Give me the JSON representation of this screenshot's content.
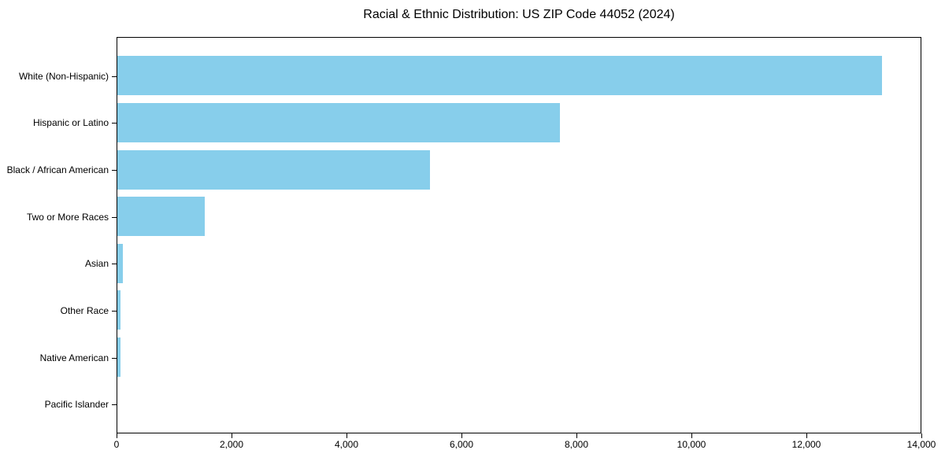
{
  "chart_data": {
    "type": "bar",
    "orientation": "horizontal",
    "title": "Racial & Ethnic Distribution: US ZIP Code 44052 (2024)",
    "categories": [
      "White (Non-Hispanic)",
      "Hispanic or Latino",
      "Black / African American",
      "Two or More Races",
      "Asian",
      "Other Race",
      "Native American",
      "Pacific Islander"
    ],
    "values": [
      13330,
      7720,
      5450,
      1530,
      100,
      50,
      50,
      0
    ],
    "xlabel": "",
    "ylabel": "",
    "xlim": [
      0,
      14000
    ],
    "x_ticks": [
      0,
      2000,
      4000,
      6000,
      8000,
      10000,
      12000,
      14000
    ],
    "x_tick_labels": [
      "0",
      "2,000",
      "4,000",
      "6,000",
      "8,000",
      "10,000",
      "12,000",
      "14,000"
    ],
    "bar_color": "#87CEEB",
    "axis_color": "#000000",
    "text_color": "#000000",
    "grid": false,
    "legend": "none",
    "background": "#ffffff"
  }
}
